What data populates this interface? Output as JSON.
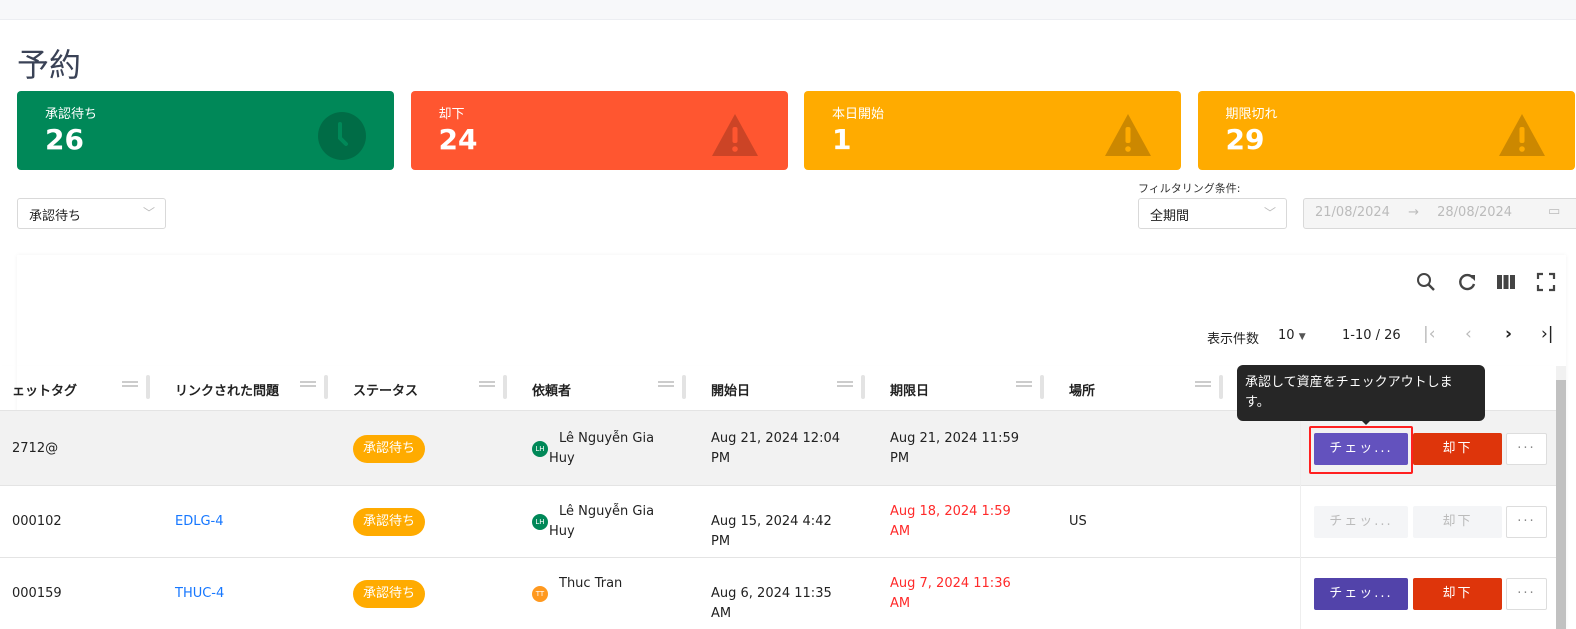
{
  "page_title": "予約",
  "cards": [
    {
      "label": "承認待ち",
      "value": "26",
      "color": "#008858",
      "icon": "clock-icon"
    },
    {
      "label": "却下",
      "value": "24",
      "color": "#ff5630",
      "icon": "warning-icon"
    },
    {
      "label": "本日開始",
      "value": "1",
      "color": "#ffab00",
      "icon": "warning-icon"
    },
    {
      "label": "期限切れ",
      "value": "29",
      "color": "#ffab00",
      "icon": "warning-icon"
    }
  ],
  "filters": {
    "status_value": "承認待ち",
    "filter_label": "フィルタリング条件:",
    "period_value": "全期間",
    "date_start": "21/08/2024",
    "date_end": "28/08/2024",
    "arrow": "→"
  },
  "pagination": {
    "page_size_label": "表示件数",
    "page_size": "10",
    "range": "1-10 / 26"
  },
  "columns": [
    "ェットタグ",
    "リンクされた問題",
    "ステータス",
    "依頼者",
    "開始日",
    "期限日",
    "場所"
  ],
  "tooltip": "承認して資産をチェックアウトします。",
  "rows": [
    {
      "asset_tag": "2712@",
      "linked_issue": "",
      "status": "承認待ち",
      "requester_initials": "LH",
      "requester_color": "#008858",
      "requester": "Lê Nguyễn Gia Huy",
      "start": "Aug 21, 2024 12:04 PM",
      "due": "Aug 21, 2024 11:59 PM",
      "due_overdue": false,
      "location": "",
      "checkout": "チェッ...",
      "reject": "却下",
      "more": "···",
      "enabled": true
    },
    {
      "asset_tag": "000102",
      "linked_issue": "EDLG-4",
      "status": "承認待ち",
      "requester_initials": "LH",
      "requester_color": "#008858",
      "requester": "Lê Nguyễn Gia Huy",
      "start": "Aug 15, 2024 4:42 PM",
      "due": "Aug 18, 2024 1:59 AM",
      "due_overdue": true,
      "location": "US",
      "checkout": "チェッ...",
      "reject": "却下",
      "more": "···",
      "enabled": false
    },
    {
      "asset_tag": "000159",
      "linked_issue": "THUC-4",
      "status": "承認待ち",
      "requester_initials": "TT",
      "requester_color": "#ff991f",
      "requester": "Thuc Tran",
      "start": "Aug 6, 2024 11:35 AM",
      "due": "Aug 7, 2024 11:36 AM",
      "due_overdue": true,
      "location": "",
      "checkout": "チェッ...",
      "reject": "却下",
      "more": "···",
      "enabled": true
    }
  ]
}
